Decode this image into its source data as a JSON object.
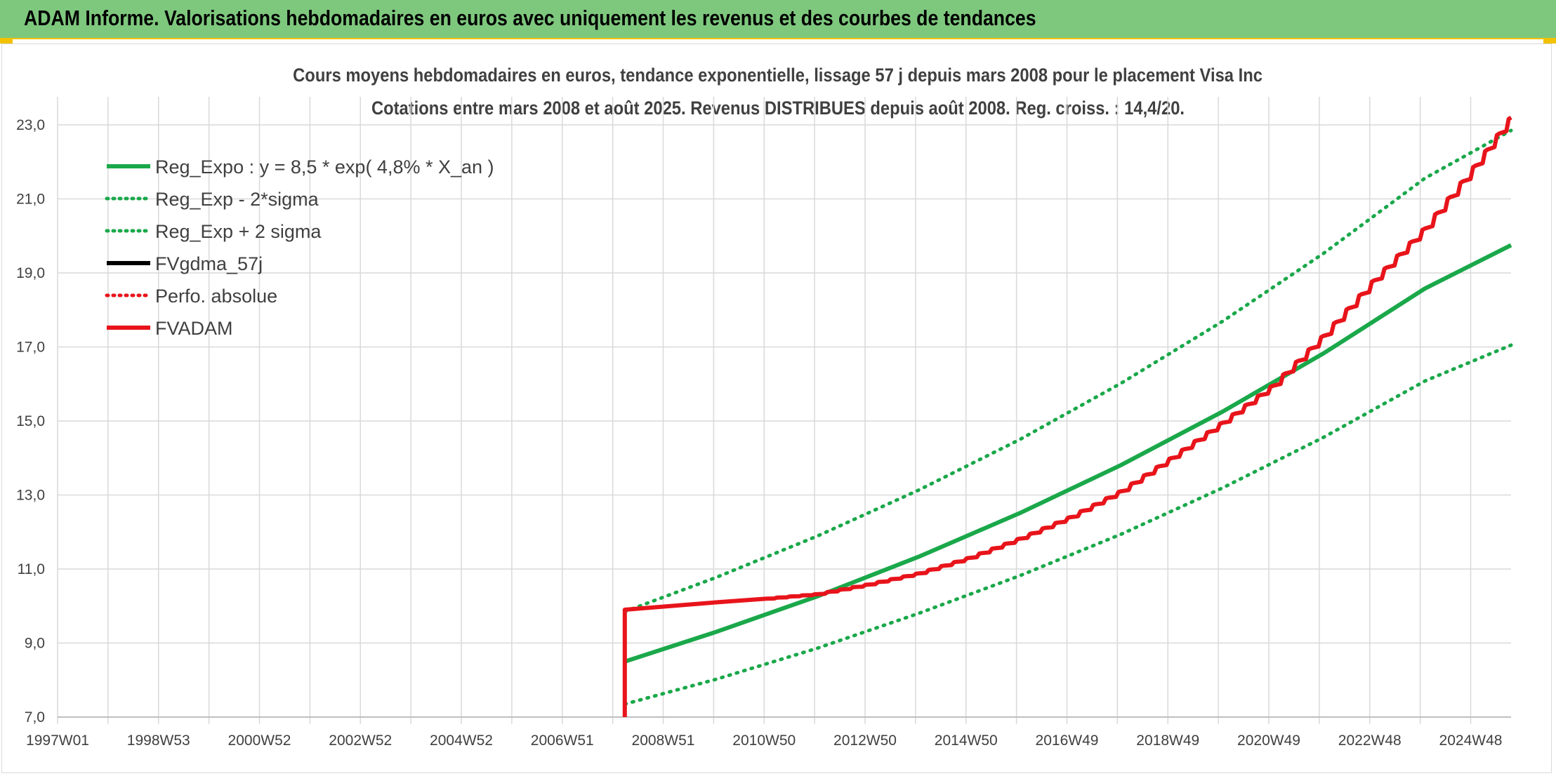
{
  "header": {
    "title": "ADAM Informe. Valorisations hebdomadaires en euros avec uniquement les revenus et des courbes de tendances"
  },
  "chart_data": {
    "type": "line",
    "title": "Cours moyens hebdomadaires en euros, tendance exponentielle, lissage 57 j depuis mars 2008 pour le placement Visa Inc",
    "subtitle": "Cotations entre mars 2008 et août 2025. Revenus DISTRIBUES depuis août 2008. Reg. croiss. : 14,4/20.",
    "x_tick_labels": [
      "1997W01",
      "1998W53",
      "2000W52",
      "2002W52",
      "2004W52",
      "2006W51",
      "2008W51",
      "2010W50",
      "2012W50",
      "2014W50",
      "2016W49",
      "2018W49",
      "2020W49",
      "2022W48",
      "2024W48"
    ],
    "x_range_years": [
      1997.0,
      2025.7
    ],
    "ylim": [
      7.0,
      23.0
    ],
    "y_ticks": [
      "7,0",
      "9,0",
      "11,0",
      "13,0",
      "15,0",
      "17,0",
      "19,0",
      "21,0",
      "23,0"
    ],
    "grid": true,
    "legend_position": "top-left",
    "series": [
      {
        "name": "Reg_Expo : y = 8,5 * exp( 4,8% *  X_an )",
        "style": "solid",
        "color": "#1aa84a",
        "x": [
          2008.2,
          2010.0,
          2012.0,
          2014.0,
          2016.0,
          2018.0,
          2020.0,
          2022.0,
          2024.0,
          2025.7
        ],
        "y": [
          8.5,
          9.3,
          10.26,
          11.33,
          12.51,
          13.81,
          15.25,
          16.83,
          18.58,
          19.75
        ]
      },
      {
        "name": "Reg_Exp - 2*sigma",
        "style": "dotted",
        "color": "#1aa84a",
        "x": [
          2008.2,
          2010.0,
          2012.0,
          2014.0,
          2016.0,
          2018.0,
          2020.0,
          2022.0,
          2024.0,
          2025.7
        ],
        "y": [
          7.35,
          8.02,
          8.86,
          9.8,
          10.82,
          11.94,
          13.19,
          14.56,
          16.08,
          17.05
        ]
      },
      {
        "name": "Reg_Exp + 2 sigma",
        "style": "dotted",
        "color": "#1aa84a",
        "x": [
          2008.2,
          2010.0,
          2012.0,
          2014.0,
          2016.0,
          2018.0,
          2020.0,
          2022.0,
          2024.0,
          2025.7
        ],
        "y": [
          9.85,
          10.77,
          11.89,
          13.13,
          14.5,
          16.02,
          17.69,
          19.53,
          21.56,
          22.85
        ]
      },
      {
        "name": "FVgdma_57j",
        "style": "solid",
        "color": "#000000",
        "x": [
          2008.2,
          2010.0,
          2011.0,
          2012.0,
          2013.0,
          2014.0,
          2015.0,
          2016.0,
          2017.0,
          2018.0,
          2019.0,
          2020.0,
          2021.0,
          2022.0,
          2023.0,
          2024.0,
          2025.0,
          2025.7
        ],
        "y": [
          9.9,
          10.1,
          10.2,
          10.32,
          10.58,
          10.88,
          11.3,
          11.82,
          12.4,
          13.1,
          14.0,
          14.95,
          15.95,
          17.3,
          18.8,
          20.2,
          21.9,
          23.2
        ]
      },
      {
        "name": "Perfo. absolue",
        "style": "dotted",
        "color": "#e8141b",
        "x": [
          2008.2,
          2010.0,
          2011.0,
          2012.0,
          2013.0,
          2014.0,
          2015.0,
          2016.0,
          2017.0,
          2018.0,
          2019.0,
          2020.0,
          2021.0,
          2022.0,
          2023.0,
          2024.0,
          2025.0,
          2025.7
        ],
        "y": [
          9.9,
          10.1,
          10.2,
          10.32,
          10.58,
          10.88,
          11.3,
          11.82,
          12.4,
          13.1,
          14.0,
          14.95,
          15.95,
          17.3,
          18.8,
          20.2,
          21.9,
          23.2
        ]
      },
      {
        "name": "FVADAM",
        "style": "solid",
        "color": "#e8141b",
        "x": [
          2008.2,
          2008.2,
          2010.0,
          2011.0,
          2012.0,
          2013.0,
          2014.0,
          2015.0,
          2016.0,
          2017.0,
          2018.0,
          2019.0,
          2020.0,
          2021.0,
          2022.0,
          2023.0,
          2024.0,
          2025.0,
          2025.7
        ],
        "y": [
          7.0,
          9.9,
          10.1,
          10.2,
          10.32,
          10.58,
          10.88,
          11.3,
          11.82,
          12.4,
          13.1,
          14.0,
          14.95,
          15.95,
          17.3,
          18.8,
          20.2,
          21.9,
          23.2
        ]
      }
    ]
  }
}
